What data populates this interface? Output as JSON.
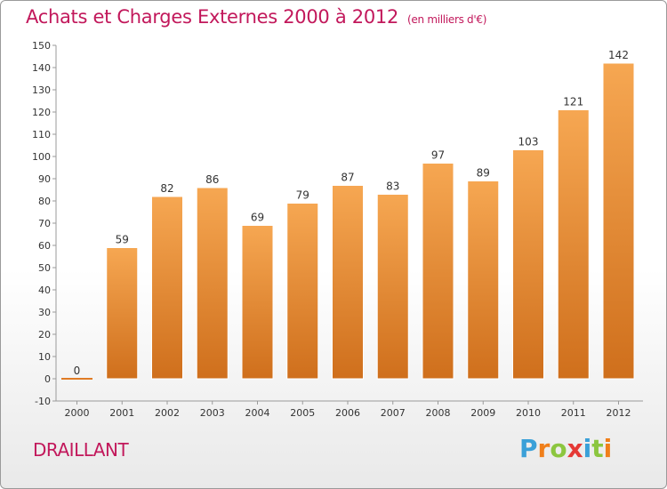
{
  "chart_data": {
    "type": "bar",
    "title": "Achats et Charges Externes 2000 à 2012",
    "unit": "(en milliers d'€)",
    "categories": [
      "2000",
      "2001",
      "2002",
      "2003",
      "2004",
      "2005",
      "2006",
      "2007",
      "2008",
      "2009",
      "2010",
      "2011",
      "2012"
    ],
    "values": [
      0,
      59,
      82,
      86,
      69,
      79,
      87,
      83,
      97,
      89,
      103,
      121,
      142
    ],
    "value_labels": [
      "0",
      "59",
      "82",
      "86",
      "69",
      "79",
      "87",
      "83",
      "97",
      "89",
      "103",
      "121",
      "142"
    ],
    "y_ticks": [
      "-10",
      "0",
      "10",
      "20",
      "30",
      "40",
      "50",
      "60",
      "70",
      "80",
      "90",
      "100",
      "110",
      "120",
      "130",
      "140",
      "150"
    ],
    "ylim": [
      -10,
      150
    ],
    "grid": false,
    "bar_color": "#f0913a",
    "xlabel": "",
    "ylabel": ""
  },
  "footer": {
    "commune": "DRAILLANT",
    "brand": "Proxiti"
  },
  "colors": {
    "title": "#c2185b",
    "brand_letters": [
      "#3aa0d8",
      "#f07f1a",
      "#8cc63f",
      "#e53935",
      "#3aa0d8",
      "#8cc63f",
      "#f07f1a"
    ]
  }
}
